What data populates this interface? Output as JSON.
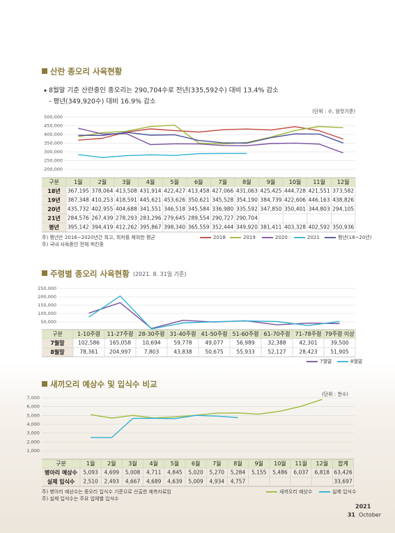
{
  "chart_data": [
    {
      "type": "line",
      "title": "산란 종오리 사육현황",
      "bullets": [
        "8월말 기준 산란중인 종오리는 290,704수로 전년(335,592수) 대비 13.4% 감소",
        "- 평년(349,920수) 대비 16.9% 감소"
      ],
      "unit": "(단위 : 수, 암컷기준)",
      "table_corner": "구분",
      "categories": [
        "1월",
        "2월",
        "3월",
        "4월",
        "5월",
        "6월",
        "7월",
        "8월",
        "9월",
        "10월",
        "11월",
        "12월"
      ],
      "series": [
        {
          "name": "2018",
          "row_label": "18년",
          "color": "#c0443a",
          "values": [
            367195,
            378064,
            413508,
            431914,
            422427,
            413458,
            427066,
            431063,
            425425,
            444728,
            421551,
            373582
          ],
          "value_labels": [
            "367,195",
            "378,064",
            "413,508",
            "431,914",
            "422,427",
            "413,458",
            "427,066",
            "431,063",
            "425,425",
            "444,728",
            "421,551",
            "373,582"
          ]
        },
        {
          "name": "2019",
          "row_label": "19년",
          "color": "#9bb53a",
          "values": [
            387348,
            410253,
            418591,
            445621,
            453626,
            350621,
            345528,
            354190,
            384739,
            422606,
            446163,
            438826
          ],
          "value_labels": [
            "387,348",
            "410,253",
            "418,591",
            "445,621",
            "453,626",
            "350,621",
            "345,528",
            "354,190",
            "384,739",
            "422,606",
            "446,163",
            "438,826"
          ]
        },
        {
          "name": "2020",
          "row_label": "20년",
          "color": "#7a4fa0",
          "values": [
            435732,
            402955,
            404688,
            341551,
            346518,
            345584,
            336980,
            335592,
            347850,
            350401,
            344803,
            294105
          ],
          "value_labels": [
            "435,732",
            "402,955",
            "404,688",
            "341,551",
            "346,518",
            "345,584",
            "336,980",
            "335,592",
            "347,850",
            "350,401",
            "344,803",
            "294,105"
          ]
        },
        {
          "name": "2021",
          "row_label": "21년",
          "color": "#2fb0d2",
          "values": [
            284576,
            267439,
            278293,
            283296,
            279645,
            289554,
            290727,
            290704,
            null,
            null,
            null,
            null
          ],
          "value_labels": [
            "284,576",
            "267,439",
            "278,293",
            "283,296",
            "279,645",
            "289,554",
            "290,727",
            "290,704",
            null,
            null,
            null,
            null
          ]
        },
        {
          "name": "평년(18~20년)",
          "row_label": "평년",
          "color": "#4a4f96",
          "values": [
            395142,
            394419,
            412262,
            395867,
            398340,
            365559,
            352444,
            349920,
            381411,
            403328,
            402592,
            350936
          ],
          "value_labels": [
            "395,142",
            "394,419",
            "412,262",
            "395,867",
            "398,340",
            "365,559",
            "352,444",
            "349,920",
            "381,411",
            "403,328",
            "402,592",
            "350,936"
          ]
        }
      ],
      "ylim": [
        200000,
        500000
      ],
      "yticks": [
        {
          "value": 200000,
          "label": "200,000"
        },
        {
          "value": 250000,
          "label": "250,000"
        },
        {
          "value": 300000,
          "label": "300,000"
        },
        {
          "value": 350000,
          "label": "350,000"
        },
        {
          "value": 400000,
          "label": "400,000"
        },
        {
          "value": 450000,
          "label": "450,000"
        },
        {
          "value": 500000,
          "label": "500,000"
        }
      ],
      "grid": true,
      "notes": [
        "주) 평년은 2016~2020년간 최고, 최저를 제외한 평균",
        "주) 국내 사육중인 전체 퍼킨종"
      ]
    },
    {
      "type": "line",
      "title": "주령별 종오리 사육현황",
      "subtitle": "(2021. 8. 31일 기준)",
      "table_corner": "구분",
      "categories": [
        "1-10주령",
        "11-27주령",
        "28-30주령",
        "31-40주령",
        "41-50주령",
        "51-60주령",
        "61-70주령",
        "71-78주령",
        "79주령 이상"
      ],
      "series": [
        {
          "name": "7월말",
          "color": "#7a4fa0",
          "values": [
            102586,
            165058,
            10694,
            59778,
            49077,
            56989,
            32388,
            42301,
            39500
          ],
          "value_labels": [
            "102,586",
            "165,058",
            "10,694",
            "59,778",
            "49,077",
            "56,989",
            "32,388",
            "42,301",
            "39,500"
          ]
        },
        {
          "name": "8월말",
          "color": "#2fb0d2",
          "values": [
            78361,
            204997,
            7803,
            43838,
            50675,
            55933,
            52127,
            28423,
            51905
          ],
          "value_labels": [
            "78,361",
            "204,997",
            "7,803",
            "43,838",
            "50,675",
            "55,933",
            "52,127",
            "28,423",
            "51,905"
          ]
        }
      ],
      "ylim": [
        0,
        250000
      ],
      "yticks": [
        {
          "value": 50000,
          "label": "50,000"
        },
        {
          "value": 100000,
          "label": "100,000"
        },
        {
          "value": 150000,
          "label": "150,000"
        },
        {
          "value": 200000,
          "label": "200,000"
        },
        {
          "value": 250000,
          "label": "250,000"
        }
      ],
      "grid": true
    },
    {
      "type": "line",
      "title": "새끼오리 예상수 및 입식수 비교",
      "unit": "(단위 : 천수)",
      "table_corner": "구분",
      "total_header": "합계",
      "categories": [
        "1월",
        "2월",
        "3월",
        "4월",
        "5월",
        "6월",
        "7월",
        "8월",
        "9월",
        "10월",
        "11월",
        "12월"
      ],
      "series": [
        {
          "name": "새끼오리 예상수",
          "row_label": "병아리 예상수",
          "color": "#9bbb3c",
          "values": [
            5093,
            4699,
            5008,
            4711,
            4845,
            5020,
            5270,
            5284,
            5155,
            5486,
            6037,
            6818
          ],
          "value_labels": [
            "5,093",
            "4,699",
            "5,008",
            "4,711",
            "4,845",
            "5,020",
            "5,270",
            "5,284",
            "5,155",
            "5,486",
            "6,037",
            "6,818"
          ],
          "total": "63,426"
        },
        {
          "name": "실제 입식수",
          "row_label": "실제 입식수",
          "color": "#2fb0d2",
          "values": [
            2510,
            2493,
            4667,
            4689,
            4639,
            5009,
            4934,
            4757,
            null,
            null,
            null,
            null
          ],
          "value_labels": [
            "2,510",
            "2,493",
            "4,667",
            "4,689",
            "4,639",
            "5,009",
            "4,934",
            "4,757",
            null,
            null,
            null,
            null
          ],
          "total": "33,697"
        }
      ],
      "ylim": [
        1000,
        7000
      ],
      "yticks": [
        {
          "value": 1000,
          "label": "1,000"
        },
        {
          "value": 2000,
          "label": "2,000"
        },
        {
          "value": 3000,
          "label": "3,000"
        },
        {
          "value": 4000,
          "label": "4,000"
        },
        {
          "value": 5000,
          "label": "5,000"
        },
        {
          "value": 6000,
          "label": "6,000"
        },
        {
          "value": 7000,
          "label": "7,000"
        }
      ],
      "grid": true,
      "notes": [
        "주) 병아리 예상수는 종오리 입식수 기준으로 산출한 예측자료임",
        "주) 실제 입식수는 주요 업체별 입식수"
      ]
    }
  ],
  "footer": {
    "year": "2021",
    "page": "31",
    "month": "October"
  }
}
